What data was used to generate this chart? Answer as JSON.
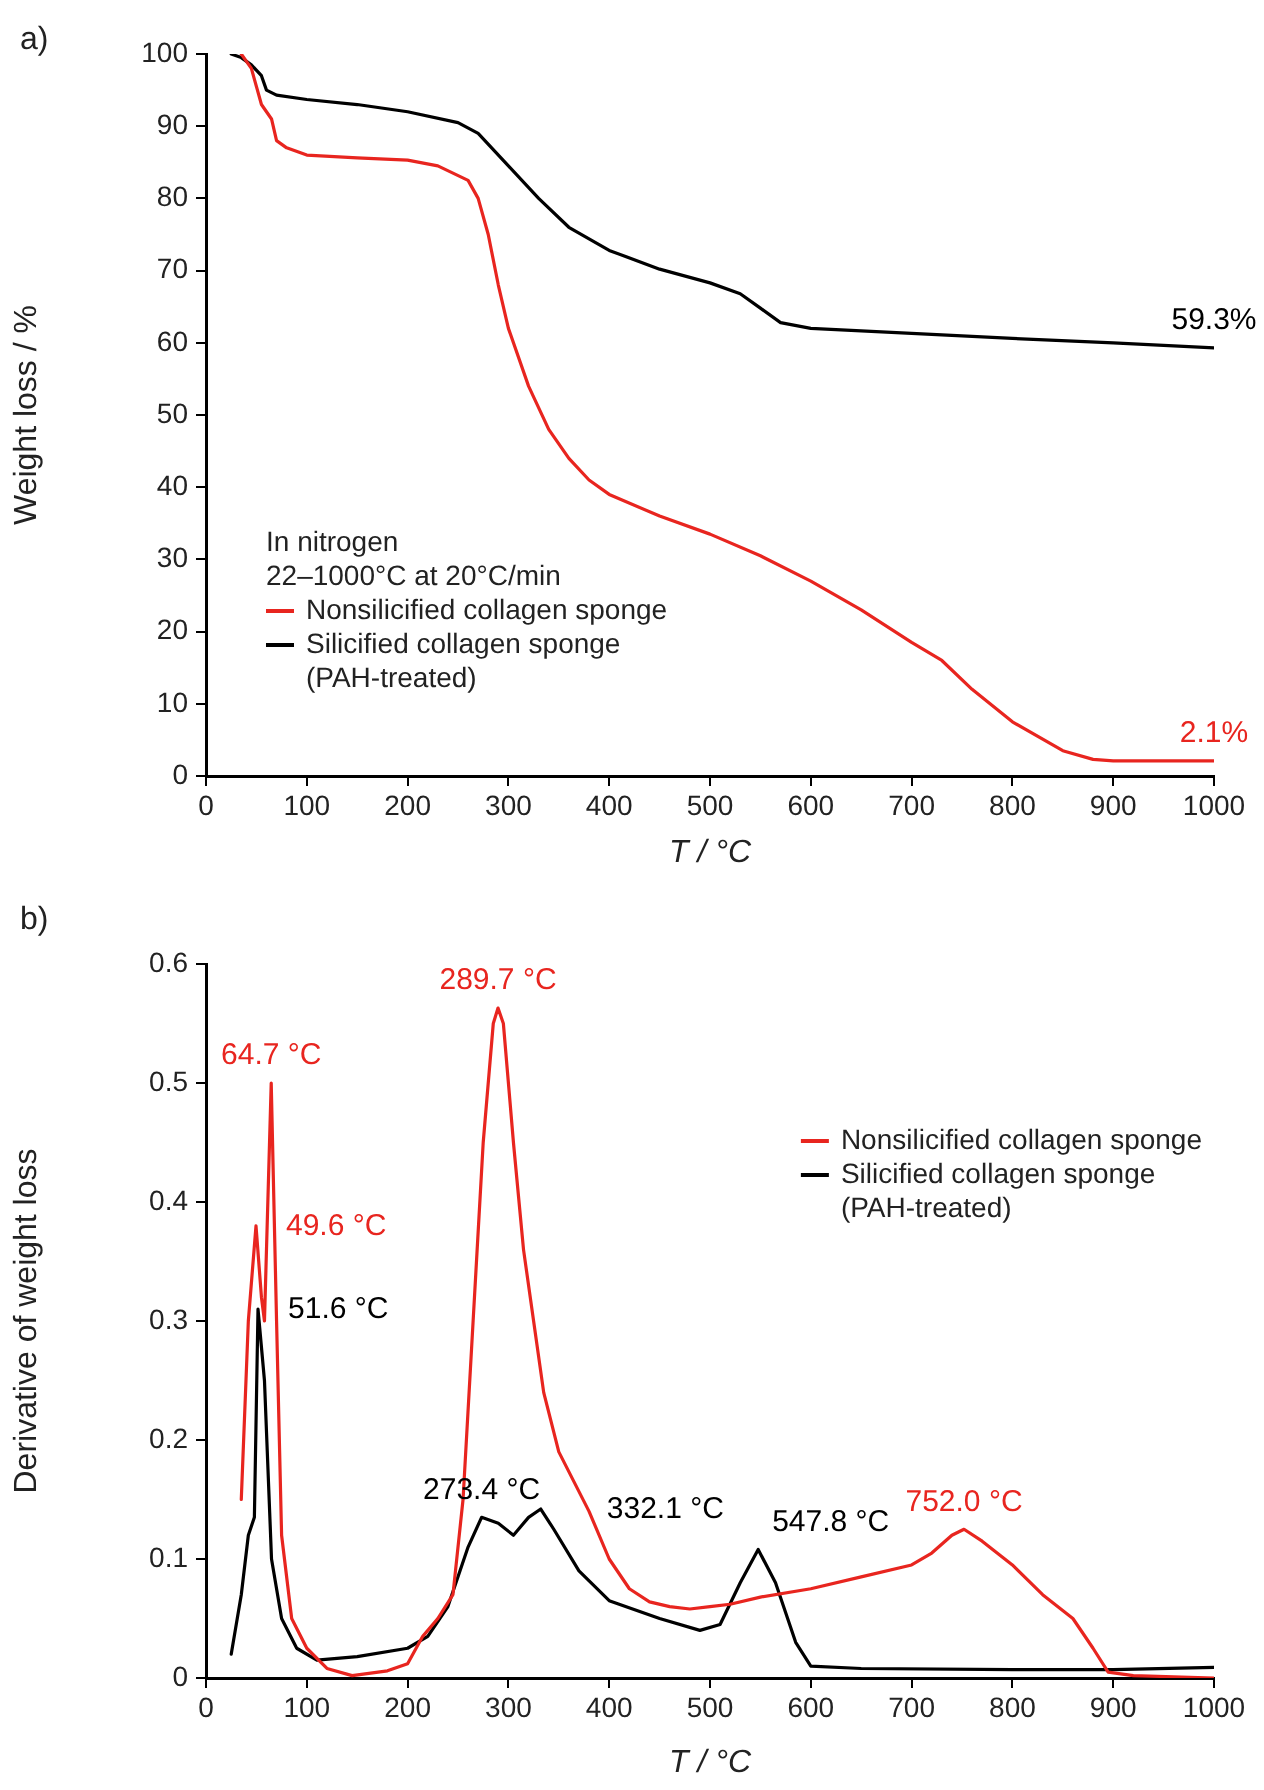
{
  "chart_data": [
    {
      "type": "line",
      "xlabel": "T / °C",
      "ylabel": "Weight loss / %",
      "legend_title": "In nitrogen\n22–1000°C at 20°C/min",
      "legend": "bottom left",
      "grid": false,
      "marker": "none",
      "xlim": [
        0,
        1000
      ],
      "xticks": [
        0,
        100,
        200,
        300,
        400,
        500,
        600,
        700,
        800,
        900,
        1000
      ],
      "ylim": [
        0,
        100
      ],
      "yticks": [
        0,
        10,
        20,
        30,
        40,
        50,
        60,
        70,
        80,
        90,
        100
      ],
      "series": [
        {
          "name": "Nonsilicified collagen sponge",
          "color": "#e8251f",
          "x": [
            35,
            45,
            55,
            65,
            70,
            80,
            100,
            150,
            200,
            230,
            260,
            270,
            280,
            290,
            300,
            320,
            340,
            360,
            380,
            400,
            450,
            500,
            550,
            600,
            650,
            700,
            730,
            760,
            800,
            850,
            880,
            900,
            1000
          ],
          "values": [
            100,
            98,
            93,
            91,
            88,
            87,
            86,
            85.6,
            85.3,
            84.5,
            82.5,
            80,
            75,
            68,
            62,
            54,
            48,
            44,
            41,
            39,
            36,
            33.5,
            30.5,
            27,
            23,
            18.5,
            16,
            12,
            7.5,
            3.5,
            2.3,
            2.1,
            2.1
          ]
        },
        {
          "name": "Silicified collagen sponge (PAH-treated)",
          "color": "#000000",
          "x": [
            25,
            35,
            45,
            55,
            60,
            70,
            100,
            150,
            200,
            250,
            270,
            300,
            330,
            360,
            400,
            450,
            500,
            530,
            550,
            570,
            600,
            700,
            800,
            900,
            1000
          ],
          "values": [
            100,
            99.5,
            98.5,
            97,
            95,
            94.3,
            93.7,
            93,
            92,
            90.5,
            89,
            84.5,
            80,
            76,
            72.8,
            70.2,
            68.3,
            66.8,
            64.8,
            62.8,
            62,
            61.3,
            60.6,
            60,
            59.3
          ]
        }
      ],
      "annotations": [
        "a)",
        {
          "text": "59.3%",
          "x": 1000,
          "y": 59.3
        },
        {
          "text": "2.1%",
          "x": 1000,
          "y": 2.1
        }
      ]
    },
    {
      "type": "line",
      "xlabel": "T / °C",
      "ylabel": "Derivative of weight loss",
      "legend": "top right",
      "grid": false,
      "marker": "none",
      "xlim": [
        0,
        1000
      ],
      "xticks": [
        0,
        100,
        200,
        300,
        400,
        500,
        600,
        700,
        800,
        900,
        1000
      ],
      "ylim": [
        0,
        0.6
      ],
      "yticks": [
        0,
        0.1,
        0.2,
        0.3,
        0.4,
        0.5,
        0.6
      ],
      "series": [
        {
          "name": "Nonsilicified collagen sponge",
          "color": "#e8251f",
          "x": [
            35,
            42,
            49.6,
            55,
            58,
            64.7,
            70,
            75,
            85,
            100,
            120,
            145,
            180,
            200,
            215,
            230,
            245,
            255,
            265,
            275,
            285,
            289.7,
            295,
            305,
            315,
            325,
            335,
            350,
            365,
            380,
            400,
            420,
            440,
            460,
            480,
            500,
            520,
            550,
            600,
            650,
            700,
            720,
            740,
            752,
            770,
            800,
            830,
            860,
            880,
            895,
            920,
            1000
          ],
          "values": [
            0.15,
            0.3,
            0.38,
            0.32,
            0.3,
            0.5,
            0.3,
            0.12,
            0.05,
            0.025,
            0.008,
            0.002,
            0.006,
            0.012,
            0.035,
            0.05,
            0.07,
            0.15,
            0.3,
            0.45,
            0.55,
            0.563,
            0.55,
            0.45,
            0.36,
            0.3,
            0.24,
            0.19,
            0.165,
            0.14,
            0.1,
            0.075,
            0.064,
            0.06,
            0.058,
            0.06,
            0.062,
            0.068,
            0.075,
            0.085,
            0.095,
            0.105,
            0.12,
            0.125,
            0.115,
            0.095,
            0.07,
            0.05,
            0.025,
            0.005,
            0.002,
            0
          ]
        },
        {
          "name": "Silicified collagen sponge (PAH-treated)",
          "color": "#000000",
          "x": [
            25,
            35,
            42,
            48,
            51.6,
            58,
            65,
            75,
            90,
            110,
            150,
            200,
            220,
            240,
            260,
            273.4,
            290,
            305,
            320,
            332.1,
            345,
            370,
            400,
            450,
            490,
            510,
            530,
            547.8,
            565,
            585,
            600,
            650,
            800,
            900,
            1000
          ],
          "values": [
            0.02,
            0.07,
            0.12,
            0.135,
            0.31,
            0.25,
            0.1,
            0.05,
            0.025,
            0.015,
            0.018,
            0.025,
            0.035,
            0.06,
            0.11,
            0.135,
            0.13,
            0.12,
            0.135,
            0.142,
            0.125,
            0.09,
            0.065,
            0.05,
            0.04,
            0.045,
            0.08,
            0.108,
            0.08,
            0.03,
            0.01,
            0.008,
            0.007,
            0.007,
            0.009
          ]
        }
      ],
      "annotations": [
        "b)",
        {
          "text": "64.7 °C",
          "x": 64.7,
          "y": 0.5
        },
        {
          "text": "49.6 °C",
          "x": 49.6,
          "y": 0.38
        },
        {
          "text": "289.7 °C",
          "x": 289.7,
          "y": 0.563
        },
        {
          "text": "51.6 °C",
          "x": 51.6,
          "y": 0.31
        },
        {
          "text": "273.4 °C",
          "x": 273.4,
          "y": 0.135
        },
        {
          "text": "332.1 °C",
          "x": 332.1,
          "y": 0.142
        },
        {
          "text": "547.8 °C",
          "x": 547.8,
          "y": 0.108
        },
        {
          "text": "752.0 °C",
          "x": 752,
          "y": 0.125
        }
      ]
    }
  ]
}
